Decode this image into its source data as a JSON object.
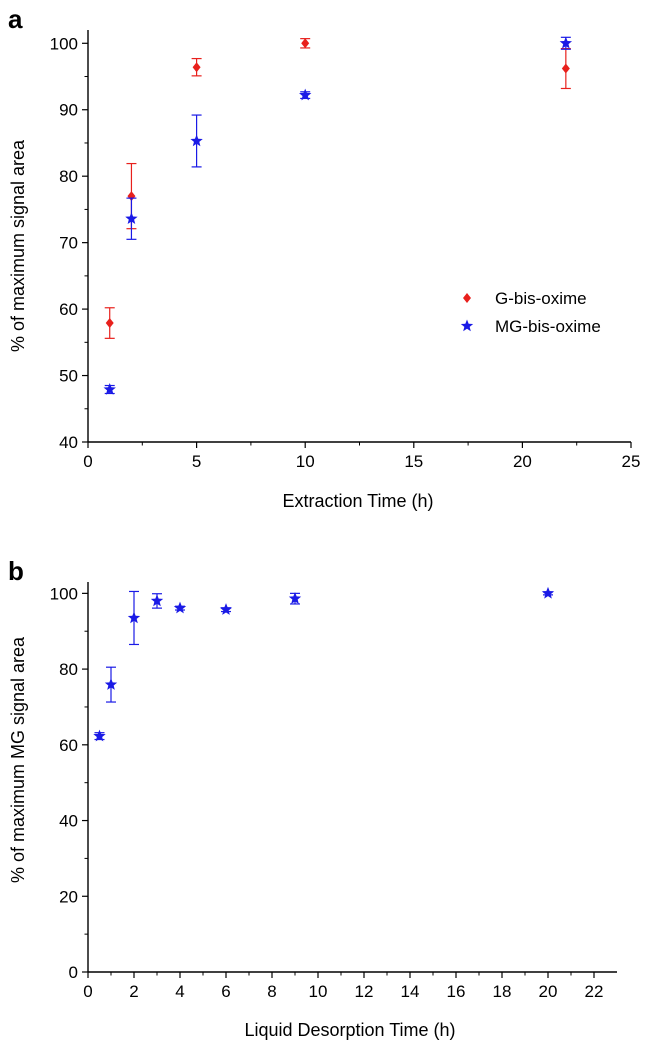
{
  "chart_data": [
    {
      "panel_label": "a",
      "type": "scatter",
      "xlabel": "Extraction Time (h)",
      "ylabel": "% of maximum signal area",
      "xlim": [
        0,
        25
      ],
      "ylim": [
        40,
        102
      ],
      "xticks": [
        0,
        5,
        10,
        15,
        20,
        25
      ],
      "yticks": [
        40,
        50,
        60,
        70,
        80,
        90,
        100
      ],
      "grid": false,
      "legend": "center-right",
      "series": [
        {
          "name": "G-bis-oxime",
          "marker": "diamond",
          "color": "#e8201c",
          "x": [
            1,
            2,
            5,
            10,
            22
          ],
          "y": [
            57.9,
            77.0,
            96.4,
            100.0,
            96.2
          ],
          "err": [
            2.3,
            4.9,
            1.3,
            0.7,
            3.0
          ]
        },
        {
          "name": "MG-bis-oxime",
          "marker": "star",
          "color": "#1a1ae6",
          "x": [
            1,
            2,
            5,
            10,
            22
          ],
          "y": [
            47.9,
            73.6,
            85.3,
            92.2,
            100.0
          ],
          "err": [
            0.6,
            3.1,
            3.9,
            0.5,
            0.9
          ]
        }
      ]
    },
    {
      "panel_label": "b",
      "type": "scatter",
      "xlabel": "Liquid Desorption Time (h)",
      "ylabel": "% of maximum MG signal area",
      "xlim": [
        0,
        23
      ],
      "ylim": [
        0,
        103
      ],
      "xticks": [
        0,
        2,
        4,
        6,
        8,
        10,
        12,
        14,
        16,
        18,
        20,
        22
      ],
      "yticks": [
        0,
        20,
        40,
        60,
        80,
        100
      ],
      "grid": false,
      "series": [
        {
          "marker": "star",
          "color": "#1a1ae6",
          "x": [
            0.5,
            1,
            2,
            3,
            4,
            6,
            9,
            20
          ],
          "y": [
            62.3,
            75.9,
            93.5,
            98.0,
            96.1,
            95.7,
            98.6,
            100.0
          ],
          "err": [
            0.9,
            4.6,
            7.0,
            1.9,
            0.5,
            0.5,
            1.4,
            0.4
          ]
        }
      ]
    }
  ]
}
